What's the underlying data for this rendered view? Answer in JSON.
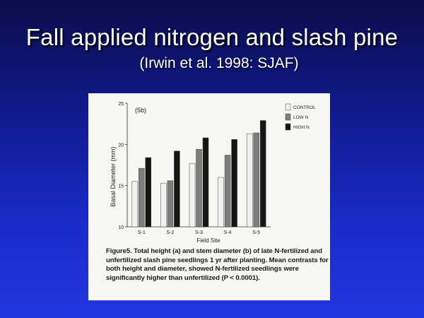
{
  "slide": {
    "title": "Fall applied nitrogen and slash pine",
    "subtitle": "(Irwin et al. 1998: SJAF)"
  },
  "colors": {
    "background_top": "#0a0e4a",
    "background_bottom": "#2236e0",
    "title_text": "#ffffff",
    "control_bar": "#f2f2f2",
    "low_n_bar": "#7d7d7d",
    "high_n_bar": "#151515"
  },
  "figure": {
    "caption": "Figure5. Total height (a) and stem diameter (b) of late N-fertilized and unfertilized slash pine seedlings 1 yr after planting. Mean contrasts for both height and diameter, showed N-fertilized seedlings were significantly higher than unfertilized (P < 0.0001)."
  },
  "chart_data": {
    "type": "bar",
    "panel_label": "(5b)",
    "xlabel": "Field Site",
    "ylabel": "Basal Diameter (mm)",
    "categories": [
      "S-1",
      "S-2",
      "S-3",
      "S-4",
      "S-5"
    ],
    "ylim": [
      10,
      25
    ],
    "yticks": [
      "10",
      "15",
      "20",
      "25"
    ],
    "legend_position": "top-right",
    "grid": false,
    "series": [
      {
        "name": "CONTROL",
        "color": "#f2f2f2",
        "values": [
          15.5,
          15.3,
          17.7,
          16.0,
          21.3
        ]
      },
      {
        "name": "LOW N",
        "color": "#7d7d7d",
        "values": [
          17.1,
          15.6,
          19.4,
          18.7,
          21.4
        ]
      },
      {
        "name": "HIGH N",
        "color": "#151515",
        "values": [
          18.4,
          19.2,
          20.8,
          20.6,
          22.9
        ]
      }
    ]
  }
}
